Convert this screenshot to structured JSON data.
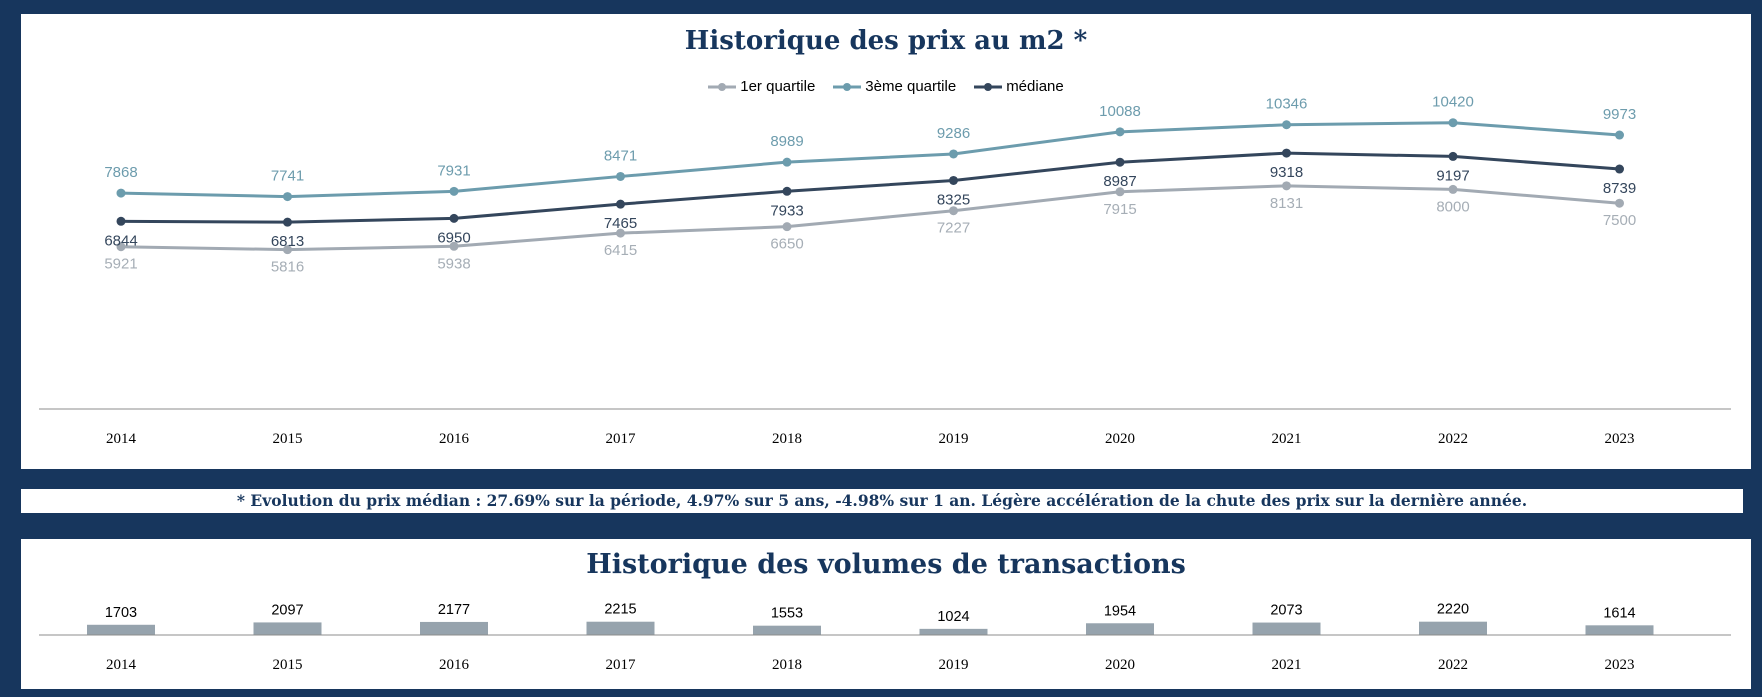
{
  "colors": {
    "background": "#17365d",
    "q1": "#a2aab3",
    "q3": "#6c9cad",
    "median": "#34465c",
    "bar": "#96a3ad",
    "title": "#17365d"
  },
  "price_chart": {
    "title": "Historique des prix au m2 *",
    "legend": [
      "1er quartile",
      "3ème quartile",
      "médiane"
    ]
  },
  "note": "* Evolution du prix médian : 27.69% sur la période, 4.97% sur 5 ans, -4.98% sur 1 an. Légère accélération de la chute des prix sur la dernière année.",
  "volume_chart": {
    "title": "Historique des volumes de transactions"
  },
  "chart_data": [
    {
      "type": "line",
      "title": "Historique des prix au m2 *",
      "xlabel": "",
      "ylabel": "",
      "categories": [
        "2014",
        "2015",
        "2016",
        "2017",
        "2018",
        "2019",
        "2020",
        "2021",
        "2022",
        "2023"
      ],
      "series": [
        {
          "name": "1er quartile",
          "values": [
            5921,
            5816,
            5938,
            6415,
            6650,
            7227,
            7915,
            8131,
            8000,
            7500
          ]
        },
        {
          "name": "3ème quartile",
          "values": [
            7868,
            7741,
            7931,
            8471,
            8989,
            9286,
            10088,
            10346,
            10420,
            9973
          ]
        },
        {
          "name": "médiane",
          "values": [
            6844,
            6813,
            6950,
            7465,
            7933,
            8325,
            8987,
            9318,
            9197,
            8739
          ]
        }
      ],
      "ylim": [
        0,
        14000
      ],
      "grid": false,
      "legend_position": "top-center"
    },
    {
      "type": "bar",
      "title": "Historique des volumes de transactions",
      "xlabel": "",
      "ylabel": "",
      "categories": [
        "2014",
        "2015",
        "2016",
        "2017",
        "2018",
        "2019",
        "2020",
        "2021",
        "2022",
        "2023"
      ],
      "values": [
        1703,
        2097,
        2177,
        2215,
        1553,
        1024,
        1954,
        2073,
        2220,
        1614
      ],
      "ylim": [
        0,
        20000
      ],
      "grid": false
    }
  ]
}
